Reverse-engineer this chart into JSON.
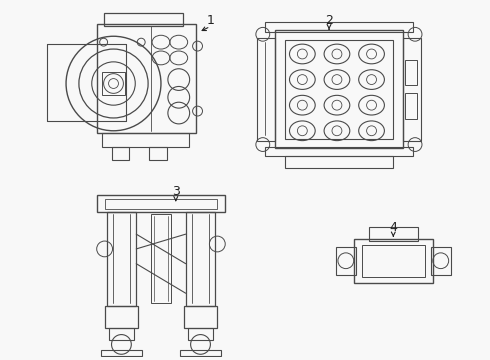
{
  "background_color": "#f8f8f8",
  "line_color": "#4a4a4a",
  "label_color": "#222222",
  "lw": 0.9
}
